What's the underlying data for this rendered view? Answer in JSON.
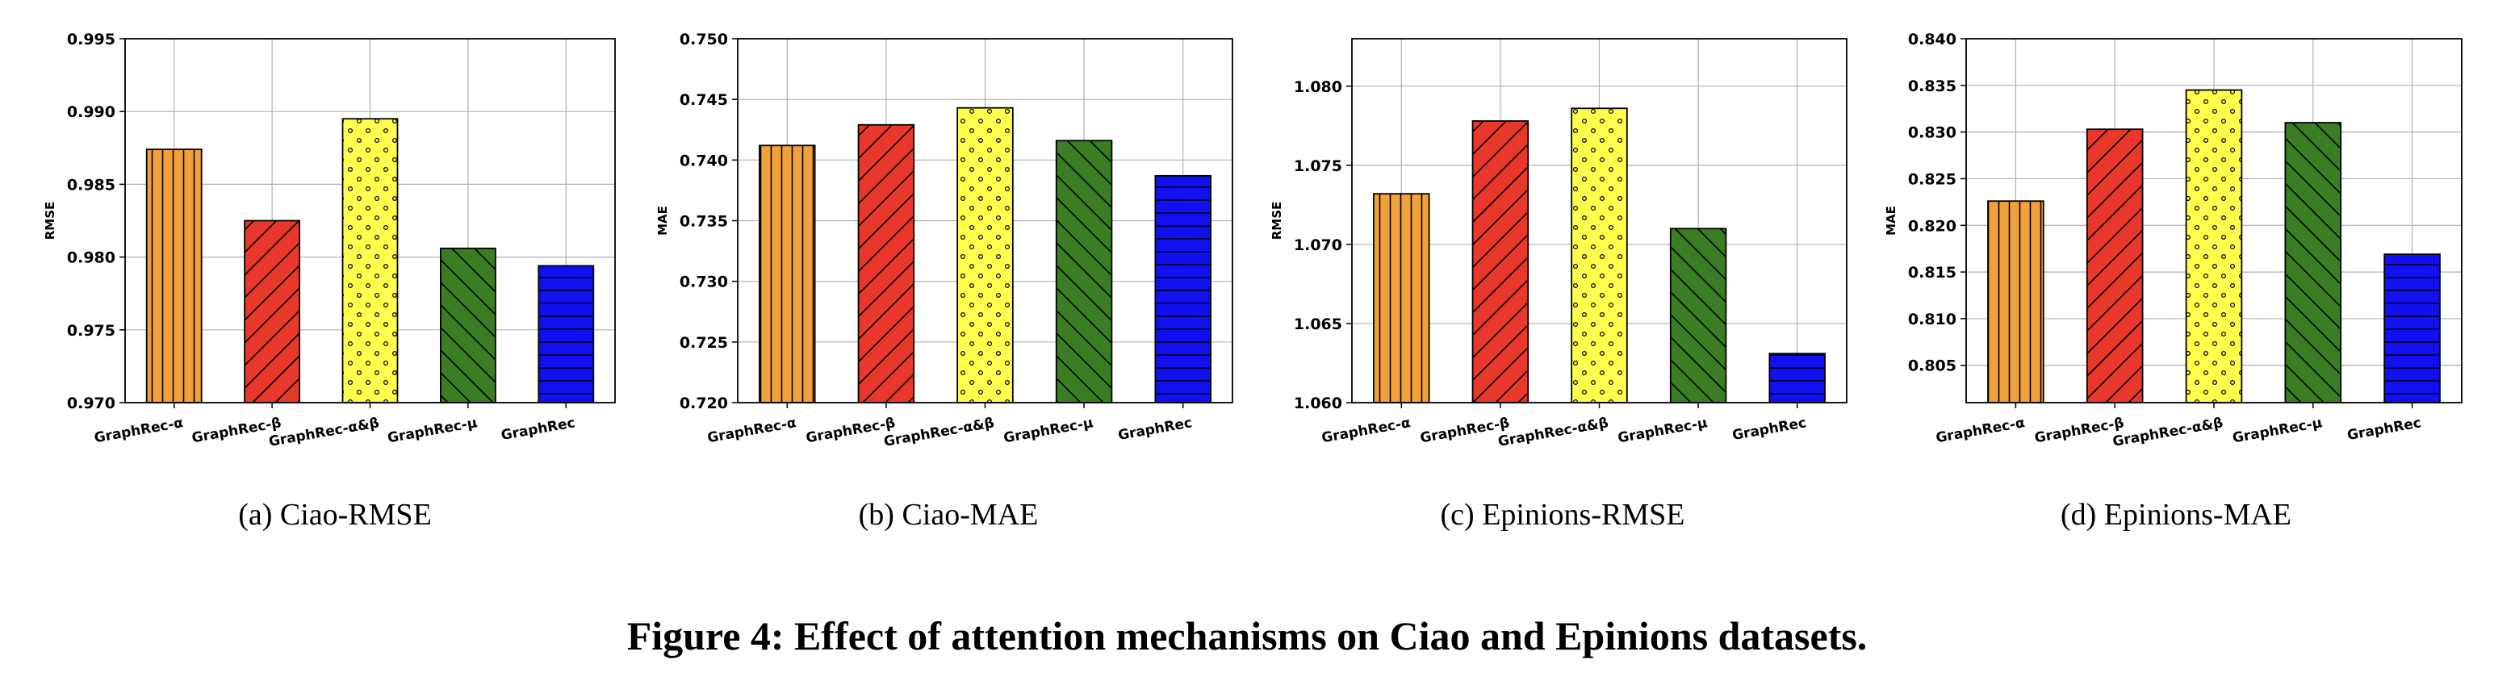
{
  "figure_caption": "Figure 4: Effect of attention mechanisms on Ciao and Epinions datasets.",
  "colors": {
    "GraphRec-α": "#f0a13a",
    "GraphRec-β": "#e8372b",
    "GraphRec-α&β": "#ffff4d",
    "GraphRec-μ": "#3a7d22",
    "GraphRec": "#1010f0"
  },
  "patterns": [
    "vertical-lines",
    "diagonal-lines",
    "dots",
    "back-diagonal-lines",
    "horizontal-lines"
  ],
  "chart_data": [
    {
      "type": "bar",
      "subcaption": "(a)  Ciao-RMSE",
      "categories": [
        "GraphRec-α",
        "GraphRec-β",
        "GraphRec-α&β",
        "GraphRec-μ",
        "GraphRec"
      ],
      "values": [
        0.9874,
        0.9825,
        0.9895,
        0.9806,
        0.9794
      ],
      "ylabel": "RMSE",
      "ylim": [
        0.97,
        0.995
      ],
      "yticks": [
        "0.970",
        "0.975",
        "0.980",
        "0.985",
        "0.990",
        "0.995"
      ],
      "grid": true
    },
    {
      "type": "bar",
      "subcaption": "(b)  Ciao-MAE",
      "categories": [
        "GraphRec-α",
        "GraphRec-β",
        "GraphRec-α&β",
        "GraphRec-μ",
        "GraphRec"
      ],
      "values": [
        0.7412,
        0.7429,
        0.7443,
        0.7416,
        0.7387
      ],
      "ylabel": "MAE",
      "ylim": [
        0.72,
        0.75
      ],
      "yticks": [
        "0.720",
        "0.725",
        "0.730",
        "0.735",
        "0.740",
        "0.745",
        "0.750"
      ],
      "grid": true
    },
    {
      "type": "bar",
      "subcaption": "(c)  Epinions-RMSE",
      "categories": [
        "GraphRec-α",
        "GraphRec-β",
        "GraphRec-α&β",
        "GraphRec-μ",
        "GraphRec"
      ],
      "values": [
        1.0732,
        1.0778,
        1.0786,
        1.071,
        1.0631
      ],
      "ylabel": "RMSE",
      "ylim": [
        1.06,
        1.083
      ],
      "yticks": [
        "1.060",
        "1.065",
        "1.070",
        "1.075",
        "1.080"
      ],
      "grid": true
    },
    {
      "type": "bar",
      "subcaption": "(d)  Epinions-MAE",
      "categories": [
        "GraphRec-α",
        "GraphRec-β",
        "GraphRec-α&β",
        "GraphRec-μ",
        "GraphRec"
      ],
      "values": [
        0.8226,
        0.8303,
        0.8345,
        0.831,
        0.8169
      ],
      "ylabel": "MAE",
      "ylim": [
        0.801,
        0.84
      ],
      "yticks": [
        "0.805",
        "0.810",
        "0.815",
        "0.820",
        "0.825",
        "0.830",
        "0.835",
        "0.840"
      ],
      "grid": true
    }
  ]
}
